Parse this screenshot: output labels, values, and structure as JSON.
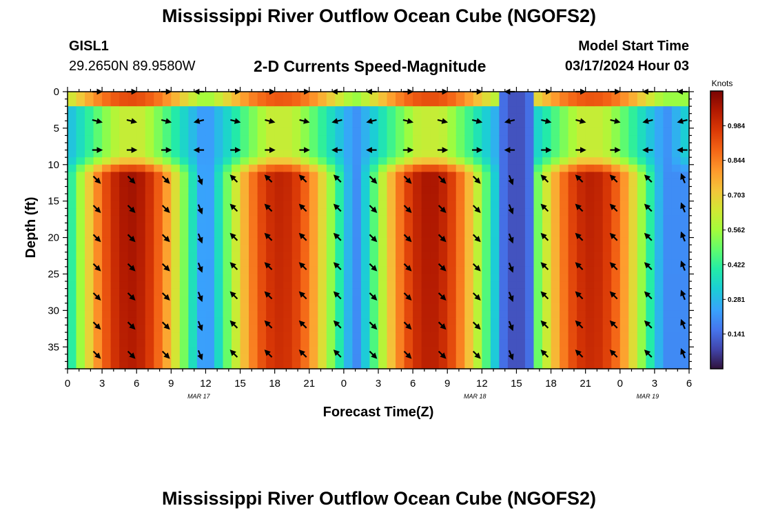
{
  "title": "Mississippi River Outflow Ocean Cube (NGOFS2)",
  "bottom_title": "Mississippi River Outflow Ocean Cube (NGOFS2)",
  "station": {
    "id": "GISL1",
    "coords": "29.2650N  89.9580W"
  },
  "model_start": {
    "label": "Model Start Time",
    "value": "03/17/2024 Hour 03"
  },
  "chart_data": {
    "type": "heatmap",
    "title": "2-D Currents Speed-Magnitude",
    "xlabel": "Forecast Time(Z)",
    "ylabel": "Depth (ft)",
    "colorbar_label": "Knots",
    "colorbar_ticks": [
      0.141,
      0.281,
      0.422,
      0.562,
      0.703,
      0.844,
      0.984
    ],
    "colorbar_range": [
      0.0,
      1.125
    ],
    "xlim": [
      0,
      54
    ],
    "ylim": [
      38,
      0
    ],
    "x_ticks": [
      {
        "x": 0,
        "label": "0"
      },
      {
        "x": 3,
        "label": "3"
      },
      {
        "x": 6,
        "label": "6"
      },
      {
        "x": 9,
        "label": "9"
      },
      {
        "x": 12,
        "label": "12"
      },
      {
        "x": 15,
        "label": "15"
      },
      {
        "x": 18,
        "label": "18"
      },
      {
        "x": 21,
        "label": "21"
      },
      {
        "x": 24,
        "label": "0"
      },
      {
        "x": 27,
        "label": "3"
      },
      {
        "x": 30,
        "label": "6"
      },
      {
        "x": 33,
        "label": "9"
      },
      {
        "x": 36,
        "label": "12"
      },
      {
        "x": 39,
        "label": "15"
      },
      {
        "x": 42,
        "label": "18"
      },
      {
        "x": 45,
        "label": "21"
      },
      {
        "x": 48,
        "label": "0"
      },
      {
        "x": 51,
        "label": "3"
      },
      {
        "x": 54,
        "label": "6"
      }
    ],
    "date_labels": [
      {
        "x": 11.4,
        "label": "MAR 17"
      },
      {
        "x": 35.4,
        "label": "MAR 18"
      },
      {
        "x": 50.4,
        "label": "MAR 19"
      }
    ],
    "y_ticks": [
      0,
      5,
      10,
      15,
      20,
      25,
      30,
      35
    ],
    "speed_peaks_lower": [
      {
        "center_hr": 5.5,
        "peak": 1.07
      },
      {
        "center_hr": 18.5,
        "peak": 1.02
      },
      {
        "center_hr": 31.5,
        "peak": 1.06
      },
      {
        "center_hr": 45.5,
        "peak": 1.03
      }
    ],
    "grid": false,
    "legend": "right colorbar"
  }
}
